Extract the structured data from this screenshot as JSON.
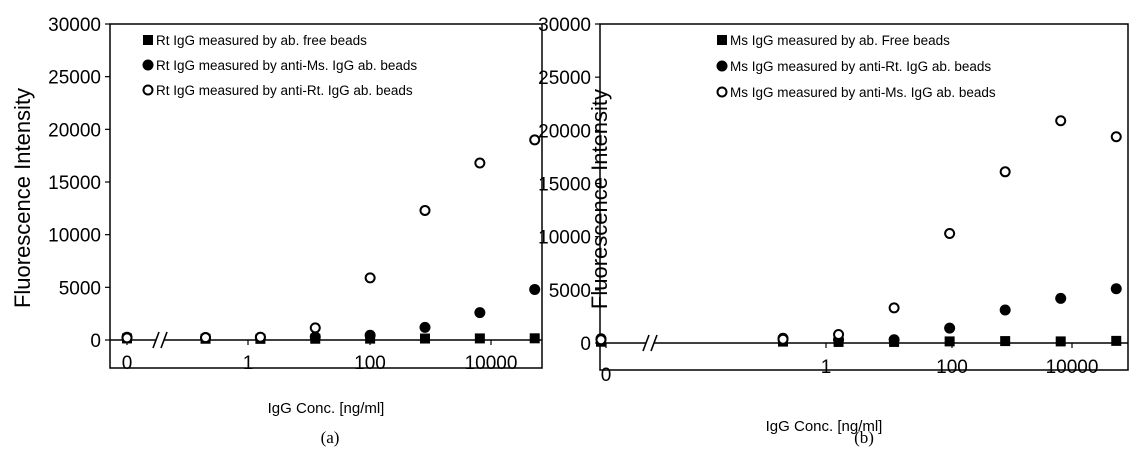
{
  "chart_data": [
    {
      "type": "scatter",
      "panel_label": "(a)",
      "xlabel": "IgG Conc. [ng/ml]",
      "ylabel": "Fluorescence Intensity",
      "ylim": [
        0,
        30000
      ],
      "yticks": [
        "0",
        "5000",
        "10000",
        "15000",
        "20000",
        "25000",
        "30000"
      ],
      "xticks": [
        "0",
        "1",
        "100",
        "10000"
      ],
      "x_scale": "log with axis break",
      "legend_position": "top-left",
      "series": [
        {
          "name": "Rt IgG measured by ab. free beads",
          "marker": "filled-square",
          "points": [
            [
              0,
              150
            ],
            [
              0.2,
              120
            ],
            [
              1.6,
              110
            ],
            [
              12.8,
              120
            ],
            [
              102.4,
              130
            ],
            [
              819.2,
              140
            ],
            [
              6553.6,
              150
            ],
            [
              52428.8,
              160
            ]
          ]
        },
        {
          "name": "Rt IgG measured by anti-Ms. IgG ab. beads",
          "marker": "filled-circle",
          "points": [
            [
              0,
              260
            ],
            [
              0.2,
              240
            ],
            [
              1.6,
              250
            ],
            [
              12.8,
              280
            ],
            [
              102.4,
              450
            ],
            [
              819.2,
              1200
            ],
            [
              6553.6,
              2600
            ],
            [
              52428.8,
              4800
            ]
          ]
        },
        {
          "name": "Rt IgG measured by anti-Rt.  IgG ab. beads",
          "marker": "open-circle",
          "points": [
            [
              0,
              200
            ],
            [
              0.2,
              220
            ],
            [
              1.6,
              260
            ],
            [
              12.8,
              1150
            ],
            [
              102.4,
              5900
            ],
            [
              819.2,
              12300
            ],
            [
              6553.6,
              16800
            ],
            [
              52428.8,
              19000
            ]
          ]
        }
      ]
    },
    {
      "type": "scatter",
      "panel_label": "(b)",
      "xlabel": "IgG Conc. [ng/ml]",
      "ylabel": "Fluorescence Intensity",
      "ylim": [
        0,
        30000
      ],
      "yticks": [
        "0",
        "5000",
        "10000",
        "15000",
        "20000",
        "25000",
        "30000"
      ],
      "xticks": [
        "0",
        "1",
        "100",
        "10000"
      ],
      "x_scale": "log with axis break",
      "legend_position": "top-left",
      "series": [
        {
          "name": "Ms IgG measured by ab. Free beads",
          "marker": "filled-square",
          "points": [
            [
              0,
              120
            ],
            [
              0.2,
              130
            ],
            [
              1.6,
              100
            ],
            [
              12.8,
              100
            ],
            [
              102.4,
              150
            ],
            [
              819.2,
              180
            ],
            [
              6553.6,
              150
            ],
            [
              52428.8,
              200
            ]
          ]
        },
        {
          "name": "Ms IgG measured by anti-Rt. IgG ab. beads",
          "marker": "filled-circle",
          "points": [
            [
              0,
              400
            ],
            [
              0.2,
              450
            ],
            [
              1.6,
              300
            ],
            [
              12.8,
              300
            ],
            [
              102.4,
              1400
            ],
            [
              819.2,
              3100
            ],
            [
              6553.6,
              4200
            ],
            [
              52428.8,
              5100
            ]
          ]
        },
        {
          "name": "Ms IgG measured by anti-Ms. IgG ab. beads",
          "marker": "open-circle",
          "points": [
            [
              0,
              300
            ],
            [
              0.2,
              350
            ],
            [
              1.6,
              800
            ],
            [
              12.8,
              3300
            ],
            [
              102.4,
              10300
            ],
            [
              819.2,
              16100
            ],
            [
              6553.6,
              20900
            ],
            [
              52428.8,
              19400
            ]
          ]
        }
      ]
    }
  ]
}
